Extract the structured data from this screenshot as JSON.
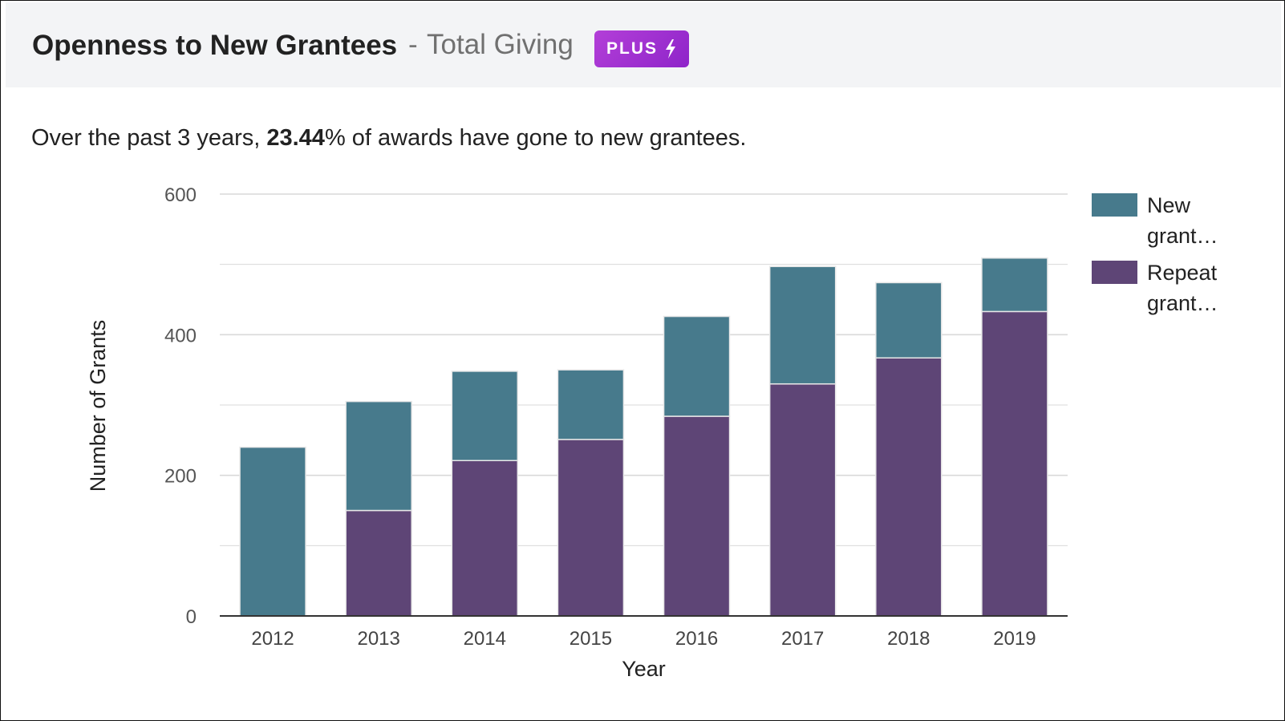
{
  "header": {
    "title": "Openness to New Grantees",
    "separator": "-",
    "subtitle": "Total Giving",
    "badge_label": "PLUS"
  },
  "summary": {
    "prefix": "Over the past 3 years, ",
    "value": "23.44",
    "suffix": "% of awards have gone to new grantees."
  },
  "colors": {
    "new": "#477a8c",
    "repeat": "#5e4576",
    "grid": "#d9d9d9",
    "axis": "#333333"
  },
  "chart_data": {
    "type": "bar",
    "stacked": true,
    "title": "",
    "xlabel": "Year",
    "ylabel": "Number of Grants",
    "categories": [
      "2012",
      "2013",
      "2014",
      "2015",
      "2016",
      "2017",
      "2018",
      "2019"
    ],
    "ylim": [
      0,
      600
    ],
    "yticks": [
      "0",
      "200",
      "400",
      "600"
    ],
    "series": [
      {
        "name": "Repeat grant…",
        "color": "#5e4576",
        "values": [
          0,
          150,
          221,
          251,
          284,
          330,
          367,
          433
        ]
      },
      {
        "name": "New grant…",
        "color": "#477a8c",
        "values": [
          240,
          155,
          127,
          99,
          142,
          167,
          107,
          76
        ]
      }
    ],
    "legend": [
      {
        "line1": "New",
        "line2": "grant…",
        "color": "#477a8c"
      },
      {
        "line1": "Repeat",
        "line2": "grant…",
        "color": "#5e4576"
      }
    ],
    "legend_position": "right"
  }
}
